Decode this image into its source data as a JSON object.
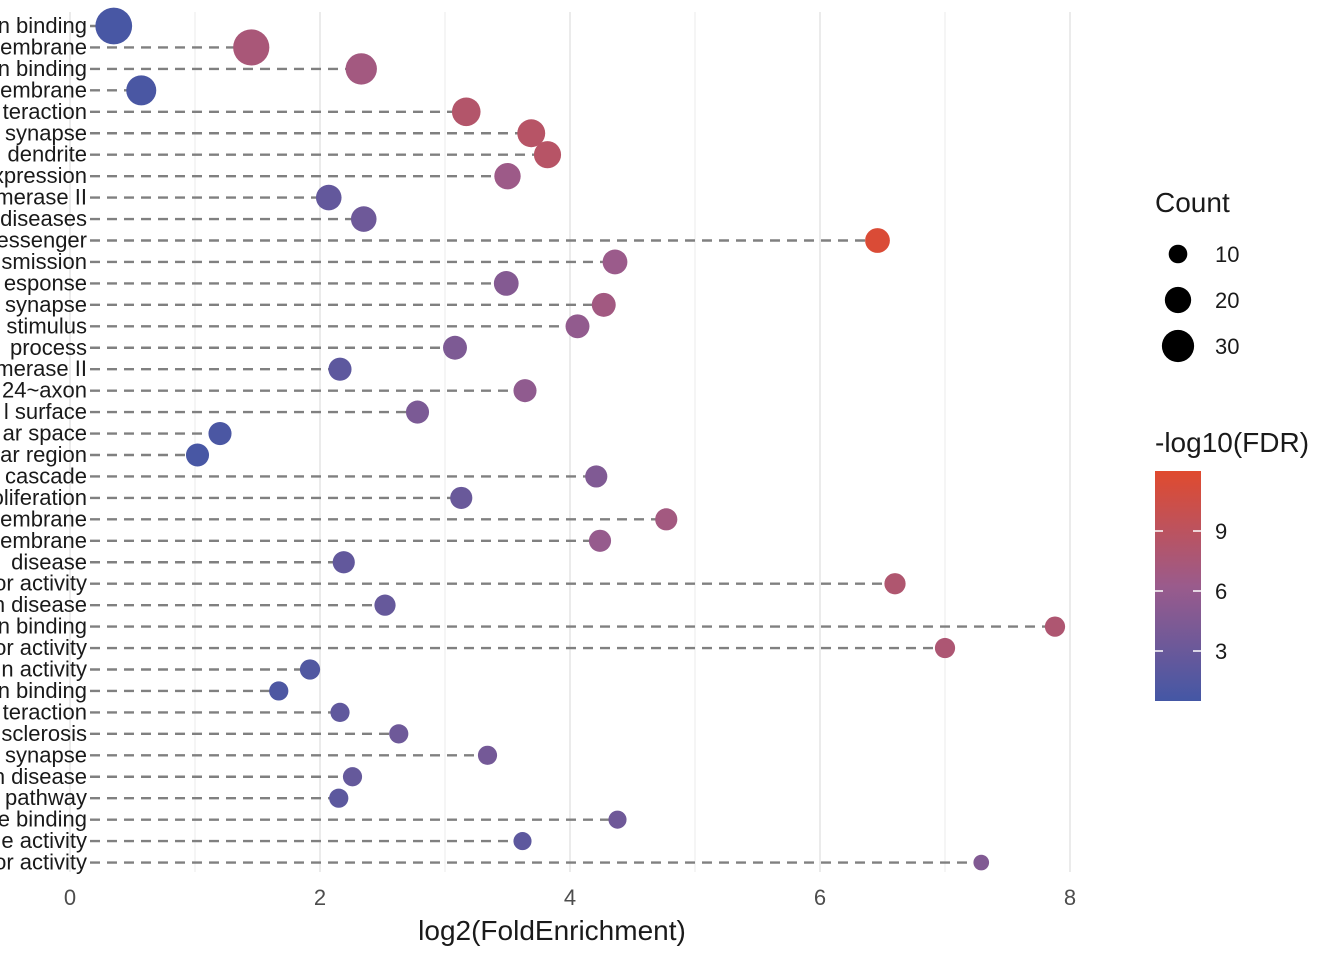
{
  "chart_data": {
    "type": "scatter",
    "subtype": "lollipop",
    "title": "",
    "xlabel": "log2(FoldEnrichment)",
    "ylabel": "",
    "xlim": [
      0,
      8
    ],
    "x_ticks": [
      0,
      2,
      4,
      6,
      8
    ],
    "grid": "vertical major and minor gridlines",
    "categories": [
      "n binding",
      "embrane",
      "n binding",
      "embrane",
      "teraction",
      "synapse",
      "dendrite",
      "xpression",
      "merase II",
      "diseases",
      "essenger",
      "smission",
      "esponse",
      "synapse",
      "stimulus",
      "process",
      "merase II",
      "24~axon",
      "l surface",
      "ar space",
      "ar region",
      "cascade",
      "oliferation",
      "embrane",
      "embrane",
      "disease",
      "or activity",
      "n disease",
      "n binding",
      "or activity",
      "n activity",
      "n binding",
      "teraction",
      "sclerosis",
      "synapse",
      "n disease",
      "pathway",
      "e binding",
      "e activity",
      "or activity"
    ],
    "points": [
      {
        "x": 0.35,
        "count": 33,
        "neglog10fdr": 0.8
      },
      {
        "x": 1.45,
        "count": 32,
        "neglog10fdr": 7.5
      },
      {
        "x": 2.33,
        "count": 24,
        "neglog10fdr": 7.0
      },
      {
        "x": 0.57,
        "count": 22,
        "neglog10fdr": 0.9
      },
      {
        "x": 3.17,
        "count": 20,
        "neglog10fdr": 8.3
      },
      {
        "x": 3.69,
        "count": 19,
        "neglog10fdr": 8.6
      },
      {
        "x": 3.82,
        "count": 18,
        "neglog10fdr": 8.6
      },
      {
        "x": 3.5,
        "count": 17,
        "neglog10fdr": 6.5
      },
      {
        "x": 2.07,
        "count": 16,
        "neglog10fdr": 2.6
      },
      {
        "x": 2.35,
        "count": 16,
        "neglog10fdr": 3.3
      },
      {
        "x": 6.46,
        "count": 15,
        "neglog10fdr": 11.5
      },
      {
        "x": 4.36,
        "count": 15,
        "neglog10fdr": 6.3
      },
      {
        "x": 3.49,
        "count": 15,
        "neglog10fdr": 4.8
      },
      {
        "x": 4.27,
        "count": 14,
        "neglog10fdr": 6.9
      },
      {
        "x": 4.06,
        "count": 14,
        "neglog10fdr": 5.7
      },
      {
        "x": 3.08,
        "count": 14,
        "neglog10fdr": 4.3
      },
      {
        "x": 2.16,
        "count": 13,
        "neglog10fdr": 2.2
      },
      {
        "x": 3.64,
        "count": 13,
        "neglog10fdr": 5.6
      },
      {
        "x": 2.78,
        "count": 13,
        "neglog10fdr": 4.2
      },
      {
        "x": 1.2,
        "count": 13,
        "neglog10fdr": 1.0
      },
      {
        "x": 1.02,
        "count": 13,
        "neglog10fdr": 0.8
      },
      {
        "x": 4.21,
        "count": 12,
        "neglog10fdr": 4.5
      },
      {
        "x": 3.13,
        "count": 12,
        "neglog10fdr": 3.0
      },
      {
        "x": 4.77,
        "count": 12,
        "neglog10fdr": 7.0
      },
      {
        "x": 4.24,
        "count": 12,
        "neglog10fdr": 6.0
      },
      {
        "x": 2.19,
        "count": 12,
        "neglog10fdr": 2.5
      },
      {
        "x": 6.6,
        "count": 11,
        "neglog10fdr": 8.0
      },
      {
        "x": 2.52,
        "count": 11,
        "neglog10fdr": 2.8
      },
      {
        "x": 7.88,
        "count": 10,
        "neglog10fdr": 7.9
      },
      {
        "x": 7.0,
        "count": 10,
        "neglog10fdr": 7.8
      },
      {
        "x": 1.92,
        "count": 10,
        "neglog10fdr": 1.4
      },
      {
        "x": 1.67,
        "count": 9,
        "neglog10fdr": 1.1
      },
      {
        "x": 2.16,
        "count": 9,
        "neglog10fdr": 2.4
      },
      {
        "x": 2.63,
        "count": 9,
        "neglog10fdr": 3.3
      },
      {
        "x": 3.34,
        "count": 9,
        "neglog10fdr": 3.7
      },
      {
        "x": 2.26,
        "count": 9,
        "neglog10fdr": 2.7
      },
      {
        "x": 2.15,
        "count": 9,
        "neglog10fdr": 2.1
      },
      {
        "x": 4.38,
        "count": 8,
        "neglog10fdr": 3.4
      },
      {
        "x": 3.62,
        "count": 8,
        "neglog10fdr": 2.2
      },
      {
        "x": 7.29,
        "count": 6,
        "neglog10fdr": 4.6
      }
    ],
    "legend_size": {
      "title": "Count",
      "entries": [
        "10",
        "20",
        "30"
      ],
      "values": [
        10,
        20,
        30
      ]
    },
    "legend_color": {
      "title": "-log10(FDR)",
      "range": [
        0.5,
        12
      ],
      "ticks": [
        3,
        6,
        9
      ],
      "low_color": "#4457A5",
      "mid_color": "#9A5B8C",
      "high_color": "#E04A2E"
    },
    "colors": {
      "grid": "#ebebeb",
      "segment": "#808080",
      "axis_text": "#4d4d4d"
    }
  }
}
